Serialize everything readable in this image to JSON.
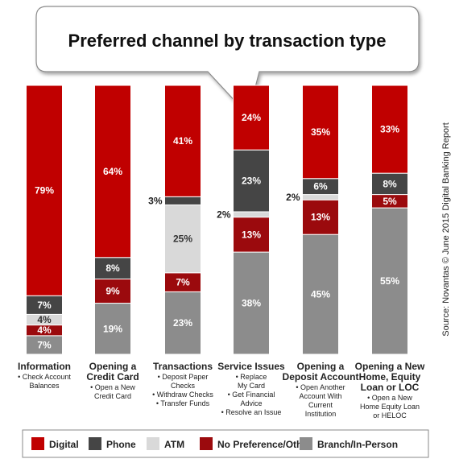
{
  "chart_data": {
    "type": "bar",
    "stacked": true,
    "title": "Preferred channel by transaction type",
    "source": "Source: Novantas © June 2015 Digital Banking Report",
    "categories": [
      "Information",
      "Opening a Credit Card",
      "Transactions",
      "Service Issues",
      "Opening a Deposit Account",
      "Opening a New Home, Equity Loan or LOC"
    ],
    "category_lines": [
      {
        "title": [
          "Information"
        ],
        "notes": [
          "• Check Account",
          "Balances"
        ]
      },
      {
        "title": [
          "Opening a",
          "Credit Card"
        ],
        "notes": [
          "• Open a New",
          "Credit Card"
        ]
      },
      {
        "title": [
          "Transactions"
        ],
        "notes": [
          "• Deposit Paper",
          "Checks",
          "• Withdraw Checks",
          "• Transfer Funds"
        ]
      },
      {
        "title": [
          "Service Issues"
        ],
        "notes": [
          "• Replace",
          "My Card",
          "• Get Financial",
          "Advice",
          "• Resolve an Issue"
        ]
      },
      {
        "title": [
          "Opening a",
          "Deposit Account"
        ],
        "notes": [
          "• Open Another",
          "Account With",
          "Current",
          "Institution"
        ]
      },
      {
        "title": [
          "Opening a New",
          "Home, Equity",
          "Loan or LOC"
        ],
        "notes": [
          "• Open a New",
          "Home Equity Loan",
          "or HELOC"
        ]
      }
    ],
    "series": [
      {
        "name": "Branch/In-Person",
        "color": "#8c8c8c",
        "values": [
          7,
          19,
          23,
          38,
          45,
          55
        ]
      },
      {
        "name": "No Preference/Other",
        "color": "#9b0a0d",
        "values": [
          4,
          9,
          7,
          13,
          13,
          5
        ]
      },
      {
        "name": "ATM",
        "color": "#d9d9d9",
        "values": [
          4,
          0,
          25,
          2,
          2,
          0
        ]
      },
      {
        "name": "Phone",
        "color": "#454545",
        "values": [
          7,
          8,
          3,
          23,
          6,
          8
        ]
      },
      {
        "name": "Digital",
        "color": "#c00000",
        "values": [
          79,
          64,
          41,
          24,
          35,
          33
        ]
      }
    ],
    "value_labels": [
      [
        "7%",
        "19%",
        "23%",
        "38%",
        "45%",
        "55%"
      ],
      [
        "4%",
        "9%",
        "7%",
        "13%",
        "13%",
        "5%"
      ],
      [
        "4%",
        "",
        "25%",
        "2%",
        "2%",
        ""
      ],
      [
        "7%",
        "8%",
        "3%",
        "23%",
        "6%",
        "8%"
      ],
      [
        "79%",
        "64%",
        "41%",
        "24%",
        "35%",
        "33%"
      ]
    ],
    "legend": {
      "position": "bottom",
      "order": [
        "Digital",
        "Phone",
        "ATM",
        "No Preference/Other",
        "Branch/In-Person"
      ]
    },
    "ylim": [
      0,
      100
    ]
  }
}
